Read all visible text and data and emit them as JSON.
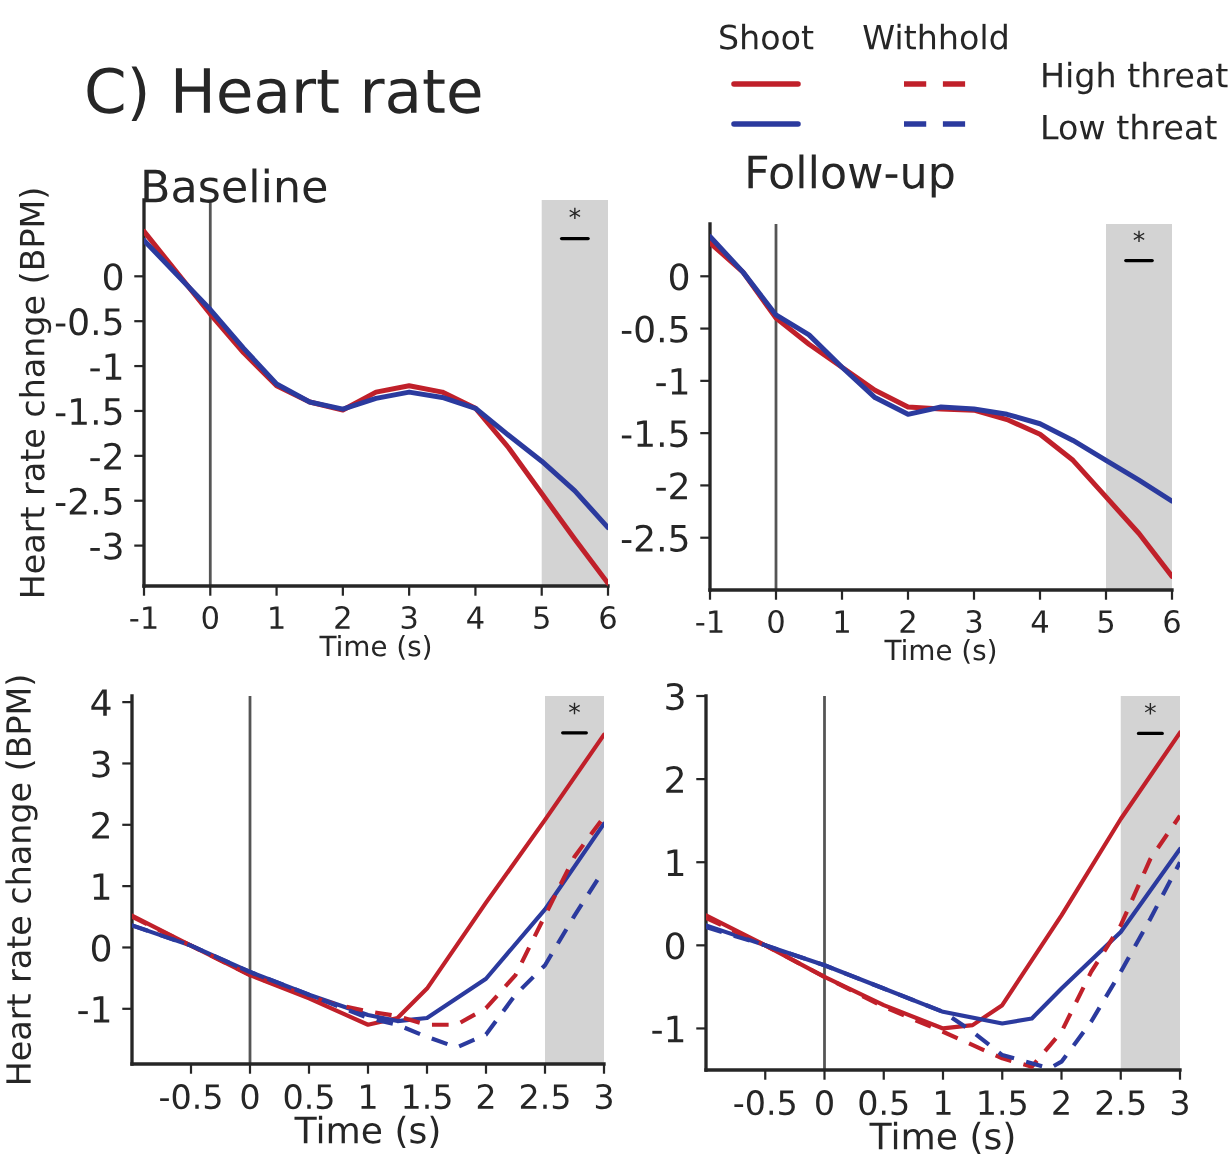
{
  "chart_data": [
    {
      "type": "line",
      "title": "C) Heart rate",
      "subtitle": "Baseline",
      "xlabel": "Time (s)",
      "ylabel": "Heart rate change (BPM)",
      "x": [
        -1,
        0,
        0.5,
        1,
        1.5,
        2,
        2.5,
        3,
        3.5,
        4,
        4.5,
        5,
        5.5,
        6
      ],
      "series": [
        {
          "color": "#c0202a",
          "values": [
            0.5,
            -0.42,
            -0.85,
            -1.22,
            -1.4,
            -1.49,
            -1.29,
            -1.22,
            -1.29,
            -1.47,
            -1.91,
            -2.42,
            -2.93,
            -3.42
          ]
        },
        {
          "color": "#2b3a9e",
          "values": [
            0.4,
            -0.37,
            -0.8,
            -1.2,
            -1.4,
            -1.48,
            -1.36,
            -1.29,
            -1.35,
            -1.47,
            -1.77,
            -2.06,
            -2.39,
            -2.8
          ]
        }
      ],
      "xlim": [
        -1,
        6
      ],
      "xticks": [
        -1,
        0,
        1,
        2,
        3,
        4,
        5,
        6
      ],
      "ylim": [
        -3.45,
        0.85
      ],
      "yticks": [
        -3,
        -2.5,
        -2,
        -1.5,
        -1,
        -0.5,
        0
      ],
      "ref_lines": [
        {
          "axis": "x",
          "value": 0,
          "color": "#555555"
        }
      ],
      "bands": [
        {
          "axis": "x",
          "from": 5,
          "to": 6,
          "color": "#d3d3d3"
        }
      ],
      "annotations": [
        "*"
      ],
      "grid": false,
      "legend": false,
      "line_style": "solid",
      "marker": "none"
    },
    {
      "type": "line",
      "title": "Follow-up",
      "xlabel": "Time (s)",
      "x": [
        -1,
        -0.5,
        0,
        0.5,
        1,
        1.5,
        2,
        2.5,
        3,
        3.5,
        4,
        4.5,
        5,
        5.5,
        6
      ],
      "series": [
        {
          "color": "#c0202a",
          "values": [
            0.32,
            0.04,
            -0.4,
            -0.65,
            -0.87,
            -1.09,
            -1.25,
            -1.27,
            -1.28,
            -1.37,
            -1.51,
            -1.76,
            -2.11,
            -2.46,
            -2.87
          ]
        },
        {
          "color": "#2b3a9e",
          "values": [
            0.38,
            0.04,
            -0.37,
            -0.56,
            -0.87,
            -1.16,
            -1.32,
            -1.25,
            -1.27,
            -1.32,
            -1.41,
            -1.57,
            -1.76,
            -1.95,
            -2.15
          ]
        }
      ],
      "xlim": [
        -1,
        6
      ],
      "xticks": [
        -1,
        0,
        1,
        2,
        3,
        4,
        5,
        6
      ],
      "ylim": [
        -3.0,
        0.5
      ],
      "yticks": [
        -2.5,
        -2,
        -1.5,
        -1,
        -0.5,
        0
      ],
      "ref_lines": [
        {
          "axis": "x",
          "value": 0,
          "color": "#555555"
        }
      ],
      "bands": [
        {
          "axis": "x",
          "from": 5,
          "to": 6,
          "color": "#d3d3d3"
        }
      ],
      "annotations": [
        "*",
        "Shoot",
        "Withhold",
        "High threat",
        "Low threat"
      ],
      "grid": false,
      "legend": false,
      "line_style": "solid",
      "marker": "none"
    },
    {
      "type": "line",
      "xlabel": "Time (s)",
      "ylabel": "Heart rate change (BPM)",
      "series": [
        {
          "color": "#c0202a",
          "line_style": "solid",
          "x": [
            -1,
            -0.5,
            0,
            0.5,
            1,
            1.25,
            1.5,
            2,
            2.5,
            3
          ],
          "values": [
            0.52,
            0.03,
            -0.45,
            -0.83,
            -1.26,
            -1.15,
            -0.67,
            0.73,
            2.08,
            3.47
          ]
        },
        {
          "color": "#2b3a9e",
          "line_style": "solid",
          "x": [
            -1,
            -0.5,
            0,
            0.5,
            1,
            1.25,
            1.5,
            2,
            2.5,
            3
          ],
          "values": [
            0.36,
            0.03,
            -0.4,
            -0.77,
            -1.1,
            -1.2,
            -1.15,
            -0.51,
            0.62,
            2.02
          ]
        },
        {
          "color": "#c0202a",
          "line_style": "dashed",
          "x": [
            -1,
            -0.5,
            0,
            0.5,
            0.75,
            1,
            1.25,
            1.5,
            1.75,
            2,
            2.25,
            2.5,
            2.75,
            3
          ],
          "values": [
            0.5,
            0.03,
            -0.45,
            -0.8,
            -0.94,
            -1.04,
            -1.12,
            -1.26,
            -1.26,
            -0.99,
            -0.45,
            0.52,
            1.48,
            2.13
          ]
        },
        {
          "color": "#2b3a9e",
          "line_style": "dashed",
          "x": [
            -1,
            -0.5,
            0,
            0.5,
            1,
            1.25,
            1.45,
            1.75,
            2,
            2.25,
            2.5,
            2.75,
            3
          ],
          "values": [
            0.36,
            0.03,
            -0.4,
            -0.77,
            -1.15,
            -1.26,
            -1.42,
            -1.63,
            -1.42,
            -0.77,
            -0.29,
            0.52,
            1.27
          ]
        }
      ],
      "xlim": [
        -1,
        3
      ],
      "xticks": [
        -0.5,
        0,
        0.5,
        1,
        1.5,
        2,
        2.5,
        3
      ],
      "ylim": [
        -1.9,
        4.1
      ],
      "yticks": [
        -1,
        0,
        1,
        2,
        3,
        4
      ],
      "ref_lines": [
        {
          "axis": "x",
          "value": 0,
          "color": "#555555"
        }
      ],
      "bands": [
        {
          "axis": "x",
          "from": 2.5,
          "to": 3,
          "color": "#d3d3d3"
        }
      ],
      "annotations": [
        "*"
      ],
      "grid": false,
      "legend": false,
      "marker": "none"
    },
    {
      "type": "line",
      "xlabel": "Time (s)",
      "series": [
        {
          "color": "#c0202a",
          "line_style": "solid",
          "x": [
            -1,
            -0.5,
            0,
            0.5,
            1,
            1.25,
            1.5,
            2,
            2.5,
            3
          ],
          "values": [
            0.36,
            0,
            -0.38,
            -0.72,
            -1.0,
            -0.96,
            -0.72,
            0.36,
            1.52,
            2.56
          ]
        },
        {
          "color": "#2b3a9e",
          "line_style": "solid",
          "x": [
            -1,
            -0.5,
            0,
            0.5,
            1,
            1.5,
            1.75,
            2,
            2.5,
            3
          ],
          "values": [
            0.24,
            0,
            -0.24,
            -0.52,
            -0.8,
            -0.94,
            -0.88,
            -0.52,
            0.16,
            1.16
          ]
        },
        {
          "color": "#c0202a",
          "line_style": "dashed",
          "x": [
            -1,
            -0.5,
            0,
            0.5,
            1,
            1.5,
            1.75,
            2,
            2.25,
            2.5,
            2.75,
            3
          ],
          "values": [
            0.33,
            0,
            -0.38,
            -0.74,
            -1.04,
            -1.36,
            -1.46,
            -1.04,
            -0.32,
            0.24,
            1.04,
            1.56
          ]
        },
        {
          "color": "#2b3a9e",
          "line_style": "dashed",
          "x": [
            -1,
            -0.5,
            0,
            0.5,
            1,
            1.25,
            1.5,
            1.9,
            2,
            2.25,
            2.5,
            2.75,
            3
          ],
          "values": [
            0.22,
            0,
            -0.24,
            -0.52,
            -0.8,
            -1.04,
            -1.32,
            -1.48,
            -1.4,
            -0.92,
            -0.32,
            0.32,
            1.0
          ]
        }
      ],
      "xlim": [
        -1,
        3
      ],
      "xticks": [
        -0.5,
        0,
        0.5,
        1,
        1.5,
        2,
        2.5,
        3
      ],
      "ylim": [
        -1.5,
        3
      ],
      "yticks": [
        -1,
        0,
        1,
        2,
        3
      ],
      "ref_lines": [
        {
          "axis": "x",
          "value": 0,
          "color": "#555555"
        }
      ],
      "bands": [
        {
          "axis": "x",
          "from": 2.5,
          "to": 3,
          "color": "#d3d3d3"
        }
      ],
      "annotations": [
        "*"
      ],
      "grid": false,
      "legend": false,
      "marker": "none"
    }
  ]
}
